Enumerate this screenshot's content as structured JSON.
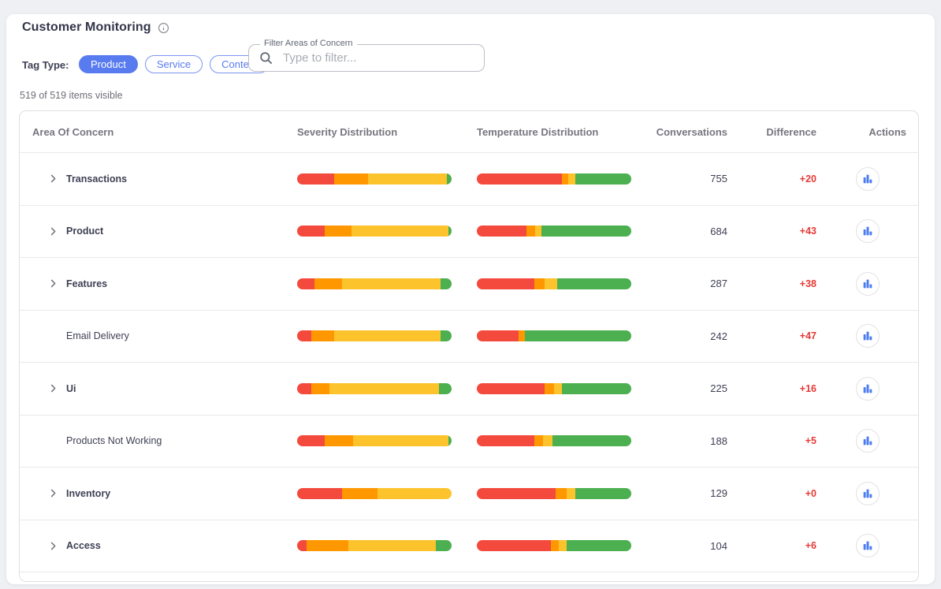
{
  "page": {
    "title": "Customer Monitoring",
    "items_visible_text": "519 of 519 items visible"
  },
  "filters": {
    "tag_type_label": "Tag Type:",
    "tags": [
      {
        "label": "Product",
        "selected": true
      },
      {
        "label": "Service",
        "selected": false
      },
      {
        "label": "Context",
        "selected": false
      }
    ],
    "search": {
      "label": "Filter Areas of Concern",
      "placeholder": "Type to filter...",
      "value": ""
    }
  },
  "colors": {
    "red": "#f4493d",
    "orange": "#ff9800",
    "yellow": "#fcc32d",
    "green": "#4caf50",
    "difference": "#e53935",
    "accent_blue": "#587bf0",
    "icon_blue": "#4b7cf3"
  },
  "icons": {
    "title_info": "info-icon",
    "search": "search-icon",
    "row_expand": "chevron-right-icon",
    "actions": "bar-chart-icon"
  },
  "table": {
    "columns": [
      "Area Of Concern",
      "Severity Distribution",
      "Temperature Distribution",
      "Conversations",
      "Difference",
      "Actions"
    ],
    "rows": [
      {
        "name": "Transactions",
        "expandable": true,
        "conversations": "755",
        "difference": "+20",
        "severity": {
          "red": 24,
          "orange": 22,
          "yellow": 51,
          "green": 3
        },
        "temperature": {
          "red": 55,
          "orange": 4,
          "yellow": 5,
          "green": 36
        }
      },
      {
        "name": "Product",
        "expandable": true,
        "conversations": "684",
        "difference": "+43",
        "severity": {
          "red": 18,
          "orange": 17,
          "yellow": 63,
          "green": 2
        },
        "temperature": {
          "red": 32,
          "orange": 6,
          "yellow": 4,
          "green": 58
        }
      },
      {
        "name": "Features",
        "expandable": true,
        "conversations": "287",
        "difference": "+38",
        "severity": {
          "red": 11,
          "orange": 18,
          "yellow": 64,
          "green": 7
        },
        "temperature": {
          "red": 37,
          "orange": 7,
          "yellow": 8,
          "green": 48
        }
      },
      {
        "name": "Email Delivery",
        "expandable": false,
        "conversations": "242",
        "difference": "+47",
        "severity": {
          "red": 9,
          "orange": 15,
          "yellow": 69,
          "green": 7
        },
        "temperature": {
          "red": 27,
          "orange": 4,
          "yellow": 0,
          "green": 69
        }
      },
      {
        "name": "Ui",
        "expandable": true,
        "conversations": "225",
        "difference": "+16",
        "severity": {
          "red": 9,
          "orange": 12,
          "yellow": 71,
          "green": 8
        },
        "temperature": {
          "red": 44,
          "orange": 6,
          "yellow": 5,
          "green": 45
        }
      },
      {
        "name": "Products Not Working",
        "expandable": false,
        "conversations": "188",
        "difference": "+5",
        "severity": {
          "red": 18,
          "orange": 18,
          "yellow": 62,
          "green": 2
        },
        "temperature": {
          "red": 37,
          "orange": 6,
          "yellow": 6,
          "green": 51
        }
      },
      {
        "name": "Inventory",
        "expandable": true,
        "conversations": "129",
        "difference": "+0",
        "severity": {
          "red": 29,
          "orange": 23,
          "yellow": 48,
          "green": 0
        },
        "temperature": {
          "red": 51,
          "orange": 7,
          "yellow": 6,
          "green": 36
        }
      },
      {
        "name": "Access",
        "expandable": true,
        "conversations": "104",
        "difference": "+6",
        "severity": {
          "red": 6,
          "orange": 27,
          "yellow": 57,
          "green": 10
        },
        "temperature": {
          "red": 48,
          "orange": 5,
          "yellow": 5,
          "green": 42
        }
      }
    ]
  }
}
